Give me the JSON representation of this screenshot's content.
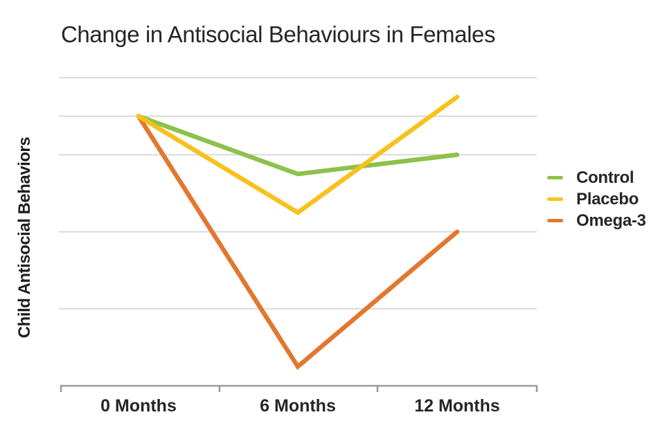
{
  "chart_data": {
    "type": "line",
    "title": "Change in Antisocial Behaviours in Females",
    "xlabel": "",
    "ylabel": "Child Antisocial Behaviors",
    "categories": [
      "0 Months",
      "6 Months",
      "12 Months"
    ],
    "series": [
      {
        "name": "Control",
        "color": "#8dc14b",
        "values": [
          7,
          5.5,
          6
        ]
      },
      {
        "name": "Placebo",
        "color": "#f8c11c",
        "values": [
          7,
          4.5,
          7.5
        ]
      },
      {
        "name": "Omega-3",
        "color": "#e2772f",
        "values": [
          7,
          0.5,
          4
        ]
      }
    ],
    "ylim": [
      0,
      8.8
    ],
    "y_tick_labels_visible": false,
    "gridline_values": [
      8,
      7,
      6,
      4,
      2
    ],
    "grid": true,
    "legend_position": "right"
  },
  "colors": {
    "background": "#ffffff",
    "text": "#262626",
    "gridline": "#d9d9d9",
    "axis": "#9b9b9b"
  }
}
